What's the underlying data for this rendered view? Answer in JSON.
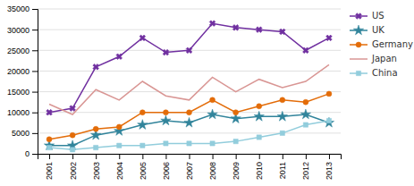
{
  "chart_data": {
    "type": "line",
    "x": [
      2001,
      2002,
      2003,
      2004,
      2005,
      2006,
      2007,
      2008,
      2009,
      2010,
      2011,
      2012,
      2013
    ],
    "series": [
      {
        "name": "US",
        "color": "#7030A0",
        "marker": "x",
        "values": [
          10000,
          11000,
          21000,
          23500,
          28000,
          24500,
          25000,
          31500,
          30500,
          30000,
          29500,
          25000,
          28000
        ]
      },
      {
        "name": "UK",
        "color": "#31849B",
        "marker": "star",
        "values": [
          2000,
          2000,
          4500,
          5500,
          7000,
          8000,
          7500,
          9500,
          8500,
          9000,
          9000,
          9500,
          7500
        ]
      },
      {
        "name": "Germany",
        "color": "#E36C09",
        "marker": "circle",
        "values": [
          3500,
          4500,
          6000,
          6500,
          10000,
          10000,
          10000,
          13000,
          10000,
          11500,
          13000,
          12500,
          14500
        ]
      },
      {
        "name": "Japan",
        "color": "#D99694",
        "marker": "none",
        "values": [
          12000,
          9500,
          15500,
          13000,
          17500,
          14000,
          13000,
          18500,
          15000,
          18000,
          16000,
          17500,
          21500
        ]
      },
      {
        "name": "China",
        "color": "#92CDDC",
        "marker": "square",
        "values": [
          1500,
          1000,
          1500,
          2000,
          2000,
          2500,
          2500,
          2500,
          3000,
          4000,
          5000,
          7000,
          8000
        ]
      }
    ],
    "xlim": [
      2000.5,
      2013.5
    ],
    "xticks": [
      2001,
      2002,
      2003,
      2004,
      2005,
      2006,
      2007,
      2008,
      2009,
      2010,
      2011,
      2012,
      2013
    ],
    "ylim": [
      0,
      35000
    ],
    "yticks": [
      0,
      5000,
      10000,
      15000,
      20000,
      25000,
      30000,
      35000
    ],
    "grid": "y",
    "legend": "right"
  }
}
